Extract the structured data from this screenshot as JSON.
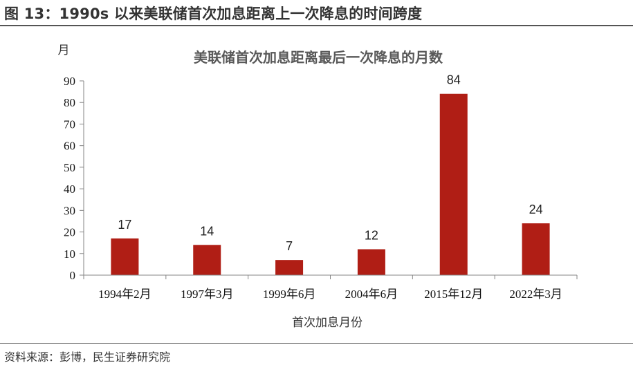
{
  "figure": {
    "title": "图 13：1990s 以来美联储首次加息距离上一次降息的时间跨度",
    "source": "资料来源：彭博，民生证券研究院"
  },
  "colors": {
    "bar": "#b01e15",
    "axis": "#868686",
    "rule": "#555555"
  },
  "chart_data": {
    "type": "bar",
    "title": "美联储首次加息距离最后一次降息的月数",
    "ylabel": "月",
    "xlabel": "首次加息月份",
    "categories": [
      "1994年2月",
      "1997年3月",
      "1999年6月",
      "2004年6月",
      "2015年12月",
      "2022年3月"
    ],
    "values": [
      17,
      14,
      7,
      12,
      84,
      24
    ],
    "data_labels": true,
    "ylim": [
      0,
      90
    ],
    "yticks": [
      0,
      10,
      20,
      30,
      40,
      50,
      60,
      70,
      80,
      90
    ],
    "grid": false
  }
}
